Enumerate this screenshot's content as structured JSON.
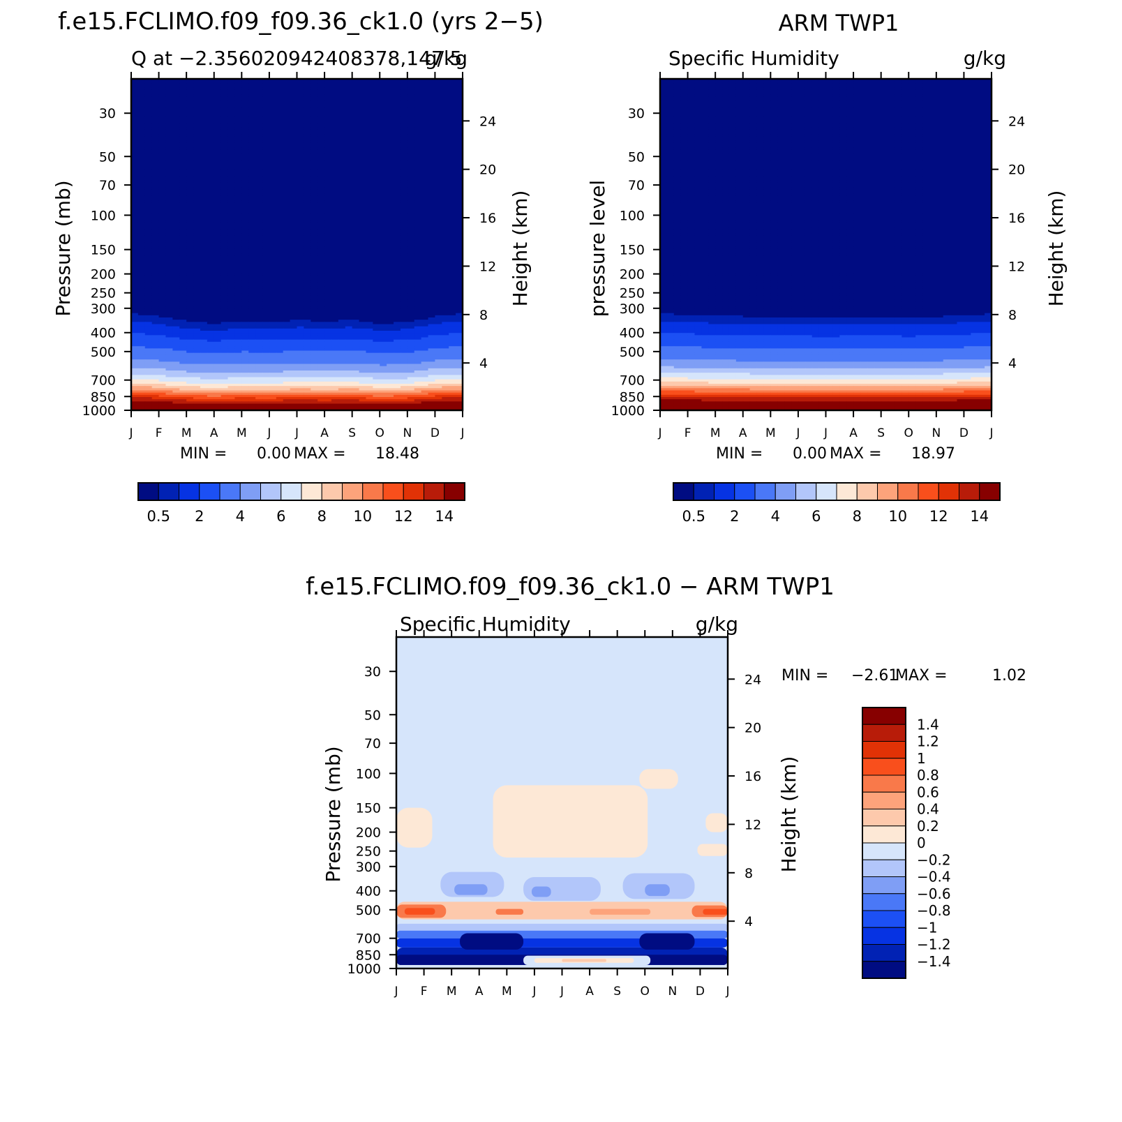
{
  "colors": {
    "model_obs_scale": [
      "#000c82",
      "#0122b4",
      "#0633e3",
      "#1c50f4",
      "#4a78f7",
      "#7f9ef5",
      "#b2c6fa",
      "#d6e5fb",
      "#fde8d6",
      "#fdc9ac",
      "#fda37b",
      "#f9794a",
      "#f94f1c",
      "#e13206",
      "#b81c09",
      "#870000"
    ],
    "diff_scale": [
      "#870000",
      "#b81c09",
      "#e13206",
      "#f94f1c",
      "#f9794a",
      "#fda37b",
      "#fdc9ac",
      "#fde8d6",
      "#d6e5fb",
      "#b2c6fa",
      "#7f9ef5",
      "#4a78f7",
      "#1c50f4",
      "#0633e3",
      "#0122b4",
      "#000c82"
    ]
  },
  "chart_data": [
    {
      "type": "heatmap",
      "id": "model",
      "title": "f.e15.FCLIMO.f09_f09.36_ck1.0 (yrs 2−5)",
      "subtitle_left": "Q at −2.356020942408378,147.5",
      "subtitle_right": "g/kg",
      "ylabel_left": "Pressure (mb)",
      "ylabel_right": "Height (km)",
      "x_ticks": [
        "J",
        "F",
        "M",
        "A",
        "M",
        "J",
        "J",
        "A",
        "S",
        "O",
        "N",
        "D",
        "J"
      ],
      "pressure_ticks": [
        "30",
        "50",
        "70",
        "100",
        "150",
        "200",
        "250",
        "300",
        "400",
        "500",
        "700",
        "850",
        "1000"
      ],
      "height_ticks": [
        "24",
        "20",
        "16",
        "12",
        "8",
        "4"
      ],
      "ylim_mb": [
        20,
        1000
      ],
      "stats": {
        "min_label": "MIN =",
        "min": "0.00",
        "max_label": "MAX =",
        "max": "18.48"
      },
      "colorbar_labels": [
        "0.5",
        "2",
        "4",
        "6",
        "8",
        "10",
        "12",
        "14"
      ],
      "levels_g_per_kg": [
        0.5,
        1,
        2,
        3,
        4,
        5,
        6,
        7,
        8,
        9,
        10,
        11,
        12,
        13,
        14
      ],
      "profile_pressure_mb": [
        20,
        300,
        320,
        350,
        380,
        420,
        470,
        520,
        580,
        650,
        700,
        740,
        780,
        820,
        860,
        900,
        940,
        1000
      ],
      "profile_q": [
        0.02,
        0.2,
        0.5,
        1.0,
        1.6,
        2.3,
        3.0,
        3.6,
        4.5,
        6.0,
        7.2,
        8.5,
        10.0,
        11.5,
        13.0,
        14.2,
        15.5,
        18.5
      ],
      "monthly_shift_mb": [
        0,
        10,
        30,
        40,
        30,
        35,
        25,
        30,
        25,
        40,
        35,
        10,
        0
      ]
    },
    {
      "type": "heatmap",
      "id": "obs",
      "title": "ARM TWP1",
      "subtitle_left": "Specific Humidity",
      "subtitle_right": "g/kg",
      "ylabel_left": "pressure level",
      "ylabel_right": "Height (km)",
      "x_ticks": [
        "J",
        "F",
        "M",
        "A",
        "M",
        "J",
        "J",
        "A",
        "S",
        "O",
        "N",
        "D",
        "J"
      ],
      "pressure_ticks": [
        "30",
        "50",
        "70",
        "100",
        "150",
        "200",
        "250",
        "300",
        "400",
        "500",
        "700",
        "850",
        "1000"
      ],
      "height_ticks": [
        "24",
        "20",
        "16",
        "12",
        "8",
        "4"
      ],
      "ylim_mb": [
        20,
        1000
      ],
      "stats": {
        "min_label": "MIN =",
        "min": "0.00",
        "max_label": "MAX =",
        "max": "18.97"
      },
      "colorbar_labels": [
        "0.5",
        "2",
        "4",
        "6",
        "8",
        "10",
        "12",
        "14"
      ],
      "levels_g_per_kg": [
        0.5,
        1,
        2,
        3,
        4,
        5,
        6,
        7,
        8,
        9,
        10,
        11,
        12,
        13,
        14
      ],
      "profile_pressure_mb": [
        20,
        290,
        320,
        350,
        380,
        420,
        470,
        520,
        580,
        640,
        690,
        730,
        770,
        810,
        850,
        890,
        930,
        1000
      ],
      "profile_q": [
        0.02,
        0.2,
        0.5,
        1.0,
        1.6,
        2.3,
        3.0,
        3.6,
        4.5,
        6.0,
        7.2,
        8.5,
        10.0,
        11.5,
        13.0,
        14.2,
        15.5,
        19.0
      ],
      "monthly_shift_mb": [
        0,
        3,
        8,
        10,
        12,
        14,
        15,
        14,
        13,
        15,
        12,
        5,
        0
      ]
    },
    {
      "type": "heatmap",
      "id": "diff",
      "title": "f.e15.FCLIMO.f09_f09.36_ck1.0 − ARM TWP1",
      "subtitle_left": "Specific Humidity",
      "subtitle_right": "g/kg",
      "ylabel_left": "Pressure (mb)",
      "ylabel_right": "Height (km)",
      "x_ticks": [
        "J",
        "F",
        "M",
        "A",
        "M",
        "J",
        "J",
        "A",
        "S",
        "O",
        "N",
        "D",
        "J"
      ],
      "pressure_ticks": [
        "30",
        "50",
        "70",
        "100",
        "150",
        "200",
        "250",
        "300",
        "400",
        "500",
        "700",
        "850",
        "1000"
      ],
      "height_ticks": [
        "24",
        "20",
        "16",
        "12",
        "8",
        "4"
      ],
      "ylim_mb": [
        20,
        1000
      ],
      "stats": {
        "min_label": "MIN =",
        "min": "−2.61",
        "max_label": "MAX =",
        "max": "1.02"
      },
      "colorbar_labels": [
        "1.4",
        "1.2",
        "1",
        "0.8",
        "0.6",
        "0.4",
        "0.2",
        "0",
        "−0.2",
        "−0.4",
        "−0.6",
        "−0.8",
        "−1",
        "−1.2",
        "−1.4"
      ],
      "levels_g_per_kg": [
        -1.4,
        -1.2,
        -1.0,
        -0.8,
        -0.6,
        -0.4,
        -0.2,
        0,
        0.2,
        0.4,
        0.6,
        0.8,
        1.0,
        1.2,
        1.4
      ],
      "features": [
        {
          "kind": "box",
          "month": [
            0,
            1.3
          ],
          "pressure_mb": [
            150,
            240
          ],
          "value": 0.1
        },
        {
          "kind": "box",
          "month": [
            3.5,
            9.1
          ],
          "pressure_mb": [
            115,
            270
          ],
          "value": 0.1
        },
        {
          "kind": "box",
          "month": [
            8.8,
            10.2
          ],
          "pressure_mb": [
            95,
            120
          ],
          "value": 0.1
        },
        {
          "kind": "box",
          "month": [
            11.2,
            12
          ],
          "pressure_mb": [
            160,
            200
          ],
          "value": 0.1
        },
        {
          "kind": "box",
          "month": [
            10.9,
            12
          ],
          "pressure_mb": [
            230,
            265
          ],
          "value": 0.1
        },
        {
          "kind": "box",
          "month": [
            1.6,
            3.9
          ],
          "pressure_mb": [
            320,
            430
          ],
          "value": -0.3
        },
        {
          "kind": "box",
          "month": [
            4.6,
            7.4
          ],
          "pressure_mb": [
            340,
            450
          ],
          "value": -0.3
        },
        {
          "kind": "box",
          "month": [
            8.2,
            10.8
          ],
          "pressure_mb": [
            325,
            440
          ],
          "value": -0.3
        },
        {
          "kind": "box",
          "month": [
            2.1,
            3.3
          ],
          "pressure_mb": [
            370,
            420
          ],
          "value": -0.5
        },
        {
          "kind": "box",
          "month": [
            4.9,
            5.6
          ],
          "pressure_mb": [
            380,
            430
          ],
          "value": -0.5
        },
        {
          "kind": "box",
          "month": [
            9.0,
            9.9
          ],
          "pressure_mb": [
            370,
            425
          ],
          "value": -0.5
        },
        {
          "kind": "box",
          "month": [
            0,
            12
          ],
          "pressure_mb": [
            455,
            560
          ],
          "value": 0.3
        },
        {
          "kind": "box",
          "month": [
            0,
            1.8
          ],
          "pressure_mb": [
            470,
            550
          ],
          "value": 0.7
        },
        {
          "kind": "box",
          "month": [
            0.3,
            1.4
          ],
          "pressure_mb": [
            490,
            530
          ],
          "value": 0.9
        },
        {
          "kind": "box",
          "month": [
            3.6,
            4.6
          ],
          "pressure_mb": [
            495,
            530
          ],
          "value": 0.7
        },
        {
          "kind": "box",
          "month": [
            7.0,
            9.2
          ],
          "pressure_mb": [
            495,
            530
          ],
          "value": 0.5
        },
        {
          "kind": "box",
          "month": [
            10.7,
            12
          ],
          "pressure_mb": [
            475,
            545
          ],
          "value": 0.7
        },
        {
          "kind": "box",
          "month": [
            11.1,
            12
          ],
          "pressure_mb": [
            495,
            530
          ],
          "value": 0.9
        },
        {
          "kind": "box",
          "month": [
            0,
            12
          ],
          "pressure_mb": [
            590,
            640
          ],
          "value": -0.3
        },
        {
          "kind": "box",
          "month": [
            0,
            12
          ],
          "pressure_mb": [
            640,
            700
          ],
          "value": -0.7
        },
        {
          "kind": "box",
          "month": [
            0,
            12
          ],
          "pressure_mb": [
            700,
            780
          ],
          "value": -1.1
        },
        {
          "kind": "box",
          "month": [
            0,
            12
          ],
          "pressure_mb": [
            780,
            930
          ],
          "value": -1.3
        },
        {
          "kind": "box",
          "month": [
            0,
            12
          ],
          "pressure_mb": [
            850,
            960
          ],
          "value": -1.5
        },
        {
          "kind": "box",
          "month": [
            2.3,
            4.6
          ],
          "pressure_mb": [
            660,
            800
          ],
          "value": -1.5
        },
        {
          "kind": "box",
          "month": [
            8.8,
            10.8
          ],
          "pressure_mb": [
            660,
            800
          ],
          "value": -1.5
        },
        {
          "kind": "box",
          "month": [
            4.6,
            9.2
          ],
          "pressure_mb": [
            860,
            960
          ],
          "value": -0.1
        },
        {
          "kind": "box",
          "month": [
            5.0,
            8.6
          ],
          "pressure_mb": [
            885,
            935
          ],
          "value": 0.1
        },
        {
          "kind": "box",
          "month": [
            6.0,
            7.6
          ],
          "pressure_mb": [
            895,
            925
          ],
          "value": 0.3
        },
        {
          "kind": "box",
          "month": [
            0,
            12
          ],
          "pressure_mb": [
            960,
            1000
          ],
          "value": -0.1
        }
      ]
    }
  ]
}
